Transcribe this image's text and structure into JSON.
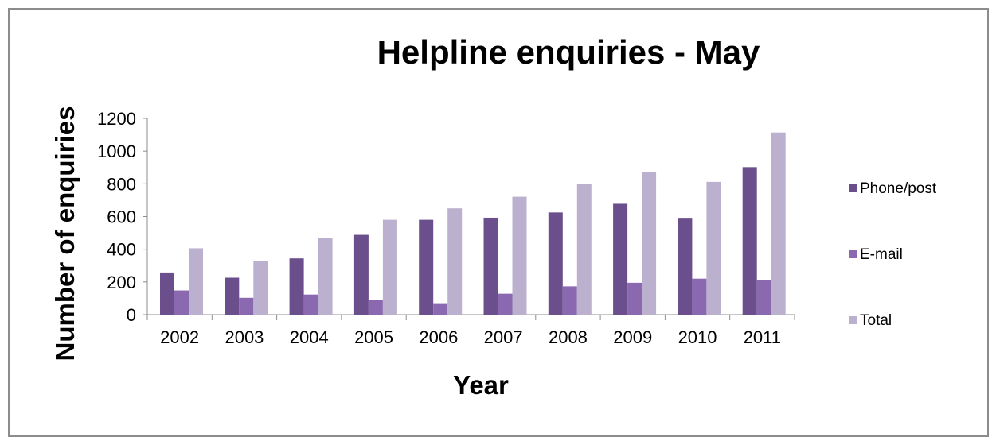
{
  "chart_data": {
    "type": "bar",
    "title": "Helpline enquiries - May",
    "xlabel": "Year",
    "ylabel": "Number of enquiries",
    "categories": [
      "2002",
      "2003",
      "2004",
      "2005",
      "2006",
      "2007",
      "2008",
      "2009",
      "2010",
      "2011"
    ],
    "series": [
      {
        "name": "Phone/post",
        "color": "#6b4f8c",
        "values": [
          258,
          226,
          344,
          488,
          580,
          593,
          625,
          678,
          592,
          902
        ]
      },
      {
        "name": "E-mail",
        "color": "#8a69b0",
        "values": [
          148,
          103,
          123,
          92,
          70,
          128,
          173,
          195,
          220,
          212
        ]
      },
      {
        "name": "Total",
        "color": "#bbb0cd",
        "values": [
          406,
          329,
          467,
          580,
          650,
          721,
          798,
          873,
          812,
          1114
        ]
      }
    ],
    "ylim": [
      0,
      1200
    ],
    "yticks": [
      0,
      200,
      400,
      600,
      800,
      1000,
      1200
    ],
    "grid": false,
    "legend": "right"
  }
}
